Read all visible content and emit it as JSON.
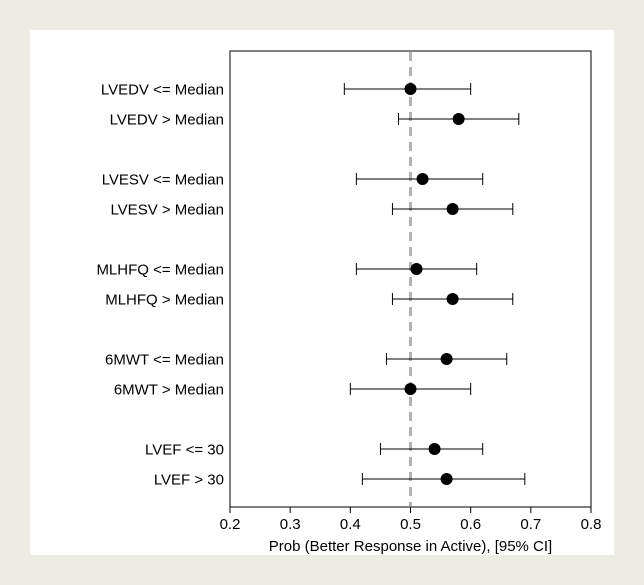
{
  "chart_data": {
    "type": "scatter",
    "subtype": "forest-plot",
    "xlabel": "Prob (Better Response in Active), [95% CI]",
    "xlim": [
      0.2,
      0.8
    ],
    "xticks": [
      "0.2",
      "0.3",
      "0.4",
      "0.5",
      "0.6",
      "0.7",
      "0.8"
    ],
    "reference_line": {
      "x": 0.5,
      "style": "dashed",
      "color": "#b3b3b3"
    },
    "point_color": "#000000",
    "groups": [
      {
        "rows": [
          {
            "label": "LVEDV <= Median",
            "estimate": 0.5,
            "lower": 0.39,
            "upper": 0.6
          },
          {
            "label": "LVEDV > Median",
            "estimate": 0.58,
            "lower": 0.48,
            "upper": 0.68
          }
        ]
      },
      {
        "rows": [
          {
            "label": "LVESV <= Median",
            "estimate": 0.52,
            "lower": 0.41,
            "upper": 0.62
          },
          {
            "label": "LVESV > Median",
            "estimate": 0.57,
            "lower": 0.47,
            "upper": 0.67
          }
        ]
      },
      {
        "rows": [
          {
            "label": "MLHFQ <= Median",
            "estimate": 0.51,
            "lower": 0.41,
            "upper": 0.61
          },
          {
            "label": "MLHFQ > Median",
            "estimate": 0.57,
            "lower": 0.47,
            "upper": 0.67
          }
        ]
      },
      {
        "rows": [
          {
            "label": "6MWT <= Median",
            "estimate": 0.56,
            "lower": 0.46,
            "upper": 0.66
          },
          {
            "label": "6MWT > Median",
            "estimate": 0.5,
            "lower": 0.4,
            "upper": 0.6
          }
        ]
      },
      {
        "rows": [
          {
            "label": "LVEF <= 30",
            "estimate": 0.54,
            "lower": 0.45,
            "upper": 0.62
          },
          {
            "label": "LVEF > 30",
            "estimate": 0.56,
            "lower": 0.42,
            "upper": 0.69
          }
        ]
      }
    ]
  }
}
